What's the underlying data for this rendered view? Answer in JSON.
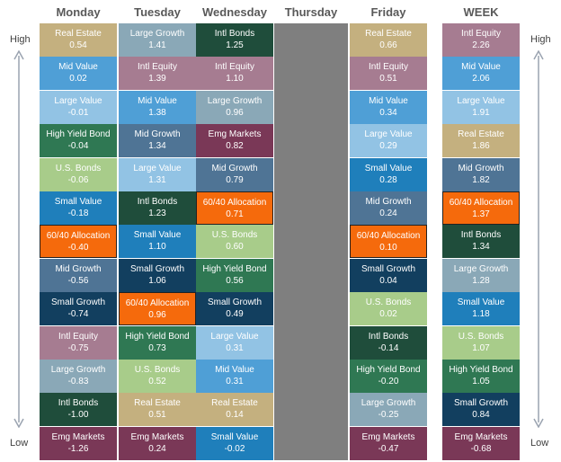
{
  "chart_data": {
    "type": "table",
    "title": "",
    "side_labels": {
      "high": "High",
      "low": "Low"
    },
    "colors": {
      "Real Estate": "#c4b07f",
      "Mid Value": "#4f9fd6",
      "Large Value": "#92c3e4",
      "High Yield Bond": "#2f7853",
      "U.S. Bonds": "#a8cc8a",
      "Small Value": "#1f7fbb",
      "60/40 Allocation": "#f56a0c",
      "Mid Growth": "#4f7495",
      "Small Growth": "#123f5f",
      "Intl Equity": "#a67c91",
      "Large Growth": "#8aa8b7",
      "Intl Bonds": "#1f4d3b",
      "Emg Markets": "#7a3857"
    },
    "columns": [
      {
        "label": "Monday",
        "closed": false,
        "rows": [
          {
            "name": "Real Estate",
            "value": "0.54"
          },
          {
            "name": "Mid Value",
            "value": "0.02"
          },
          {
            "name": "Large Value",
            "value": "-0.01"
          },
          {
            "name": "High Yield Bond",
            "value": "-0.04"
          },
          {
            "name": "U.S. Bonds",
            "value": "-0.06"
          },
          {
            "name": "Small Value",
            "value": "-0.18"
          },
          {
            "name": "60/40 Allocation",
            "value": "-0.40"
          },
          {
            "name": "Mid Growth",
            "value": "-0.56"
          },
          {
            "name": "Small Growth",
            "value": "-0.74"
          },
          {
            "name": "Intl Equity",
            "value": "-0.75"
          },
          {
            "name": "Large Growth",
            "value": "-0.83"
          },
          {
            "name": "Intl Bonds",
            "value": "-1.00"
          },
          {
            "name": "Emg Markets",
            "value": "-1.26"
          }
        ]
      },
      {
        "label": "Tuesday",
        "closed": false,
        "rows": [
          {
            "name": "Large Growth",
            "value": "1.41"
          },
          {
            "name": "Intl Equity",
            "value": "1.39"
          },
          {
            "name": "Mid Value",
            "value": "1.38"
          },
          {
            "name": "Mid Growth",
            "value": "1.34"
          },
          {
            "name": "Large Value",
            "value": "1.31"
          },
          {
            "name": "Intl Bonds",
            "value": "1.23"
          },
          {
            "name": "Small Value",
            "value": "1.10"
          },
          {
            "name": "Small Growth",
            "value": "1.06"
          },
          {
            "name": "60/40 Allocation",
            "value": "0.96"
          },
          {
            "name": "High Yield Bond",
            "value": "0.73"
          },
          {
            "name": "U.S. Bonds",
            "value": "0.52"
          },
          {
            "name": "Real Estate",
            "value": "0.51"
          },
          {
            "name": "Emg Markets",
            "value": "0.24"
          }
        ]
      },
      {
        "label": "Wednesday",
        "closed": false,
        "rows": [
          {
            "name": "Intl Bonds",
            "value": "1.25"
          },
          {
            "name": "Intl Equity",
            "value": "1.10"
          },
          {
            "name": "Large Growth",
            "value": "0.96"
          },
          {
            "name": "Emg Markets",
            "value": "0.82"
          },
          {
            "name": "Mid Growth",
            "value": "0.79"
          },
          {
            "name": "60/40 Allocation",
            "value": "0.71"
          },
          {
            "name": "U.S. Bonds",
            "value": "0.60"
          },
          {
            "name": "High Yield Bond",
            "value": "0.56"
          },
          {
            "name": "Small Growth",
            "value": "0.49"
          },
          {
            "name": "Large Value",
            "value": "0.31"
          },
          {
            "name": "Mid Value",
            "value": "0.31"
          },
          {
            "name": "Real Estate",
            "value": "0.14"
          },
          {
            "name": "Small Value",
            "value": "-0.02"
          }
        ]
      },
      {
        "label": "Thursday",
        "closed": true,
        "rows": []
      },
      {
        "label": "Friday",
        "closed": false,
        "rows": [
          {
            "name": "Real Estate",
            "value": "0.66"
          },
          {
            "name": "Intl Equity",
            "value": "0.51"
          },
          {
            "name": "Mid Value",
            "value": "0.34"
          },
          {
            "name": "Large Value",
            "value": "0.29"
          },
          {
            "name": "Small Value",
            "value": "0.28"
          },
          {
            "name": "Mid Growth",
            "value": "0.24"
          },
          {
            "name": "60/40 Allocation",
            "value": "0.10"
          },
          {
            "name": "Small Growth",
            "value": "0.04"
          },
          {
            "name": "U.S. Bonds",
            "value": "0.02"
          },
          {
            "name": "Intl Bonds",
            "value": "-0.14"
          },
          {
            "name": "High Yield Bond",
            "value": "-0.20"
          },
          {
            "name": "Large Growth",
            "value": "-0.25"
          },
          {
            "name": "Emg Markets",
            "value": "-0.47"
          }
        ]
      },
      {
        "label": "WEEK",
        "closed": false,
        "rows": [
          {
            "name": "Intl Equity",
            "value": "2.26"
          },
          {
            "name": "Mid Value",
            "value": "2.06"
          },
          {
            "name": "Large Value",
            "value": "1.91"
          },
          {
            "name": "Real Estate",
            "value": "1.86"
          },
          {
            "name": "Mid Growth",
            "value": "1.82"
          },
          {
            "name": "60/40 Allocation",
            "value": "1.37"
          },
          {
            "name": "Intl Bonds",
            "value": "1.34"
          },
          {
            "name": "Large Growth",
            "value": "1.28"
          },
          {
            "name": "Small Value",
            "value": "1.18"
          },
          {
            "name": "U.S. Bonds",
            "value": "1.07"
          },
          {
            "name": "High Yield Bond",
            "value": "1.05"
          },
          {
            "name": "Small Growth",
            "value": "0.84"
          },
          {
            "name": "Emg Markets",
            "value": "-0.68"
          }
        ]
      }
    ]
  }
}
